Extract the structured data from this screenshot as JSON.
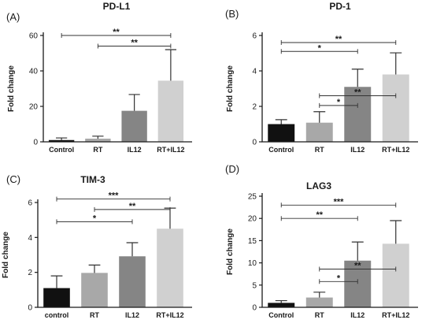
{
  "chart_data": [
    {
      "panel": "(A)",
      "title": "PD-L1",
      "type": "bar",
      "ylabel": "Fold change",
      "categories": [
        "Control",
        "RT",
        "IL12",
        "RT+IL12"
      ],
      "values": [
        1,
        1.8,
        17.5,
        34.5
      ],
      "errors": [
        1.2,
        1.4,
        9.2,
        17.5
      ],
      "colors": [
        "#111111",
        "#a8a8a8",
        "#858585",
        "#d0d0d0"
      ],
      "ylim": [
        0,
        60
      ],
      "yticks": [
        "0",
        "20",
        "40",
        "60"
      ],
      "significance": [
        {
          "from": 0,
          "to": 3,
          "y": 60,
          "label": "**"
        },
        {
          "from": 1,
          "to": 3,
          "y": 54,
          "label": "**"
        }
      ]
    },
    {
      "panel": "(B)",
      "title": "PD-1",
      "type": "bar",
      "ylabel": "Fold change",
      "categories": [
        "Control",
        "RT",
        "IL12",
        "RT+IL12"
      ],
      "values": [
        1,
        1.08,
        3.1,
        3.8
      ],
      "errors": [
        0.25,
        0.62,
        1.0,
        1.22
      ],
      "colors": [
        "#111111",
        "#a8a8a8",
        "#858585",
        "#d0d0d0"
      ],
      "ylim": [
        0,
        6
      ],
      "yticks": [
        "0",
        "2",
        "4",
        "6"
      ],
      "significance": [
        {
          "from": 0,
          "to": 3,
          "y": 5.6,
          "label": "**"
        },
        {
          "from": 0,
          "to": 2,
          "y": 5.1,
          "label": "*"
        },
        {
          "from": 1,
          "to": 3,
          "y": 2.6,
          "label": "**"
        },
        {
          "from": 1,
          "to": 2,
          "y": 2.05,
          "label": "*"
        }
      ]
    },
    {
      "panel": "(C)",
      "title": "TIM-3",
      "type": "bar",
      "ylabel": "Fold change",
      "categories": [
        "control",
        "RT",
        "IL12",
        "RT+IL12"
      ],
      "values": [
        1.1,
        1.97,
        2.92,
        4.5
      ],
      "errors": [
        0.7,
        0.45,
        0.78,
        1.18
      ],
      "colors": [
        "#111111",
        "#a8a8a8",
        "#858585",
        "#d0d0d0"
      ],
      "ylim": [
        0,
        6
      ],
      "yticks": [
        "0",
        "2",
        "4",
        "6"
      ],
      "significance": [
        {
          "from": 0,
          "to": 3,
          "y": 6.2,
          "label": "***"
        },
        {
          "from": 1,
          "to": 3,
          "y": 5.6,
          "label": "**"
        },
        {
          "from": 0,
          "to": 2,
          "y": 4.9,
          "label": "*"
        }
      ]
    },
    {
      "panel": "(D)",
      "title": "LAG3",
      "type": "bar",
      "ylabel": "Fold change",
      "categories": [
        "Control",
        "RT",
        "IL12",
        "RT+IL12"
      ],
      "values": [
        1,
        2.2,
        10.5,
        14.3
      ],
      "errors": [
        0.5,
        1.2,
        4.2,
        5.2
      ],
      "colors": [
        "#111111",
        "#a8a8a8",
        "#858585",
        "#d0d0d0"
      ],
      "ylim": [
        0,
        25
      ],
      "yticks": [
        "0",
        "5",
        "10",
        "15",
        "20",
        "25"
      ],
      "significance": [
        {
          "from": 0,
          "to": 3,
          "y": 23,
          "label": "***"
        },
        {
          "from": 0,
          "to": 2,
          "y": 20,
          "label": "**"
        },
        {
          "from": 1,
          "to": 3,
          "y": 8.6,
          "label": "**"
        },
        {
          "from": 1,
          "to": 2,
          "y": 5.8,
          "label": "*"
        }
      ]
    }
  ]
}
